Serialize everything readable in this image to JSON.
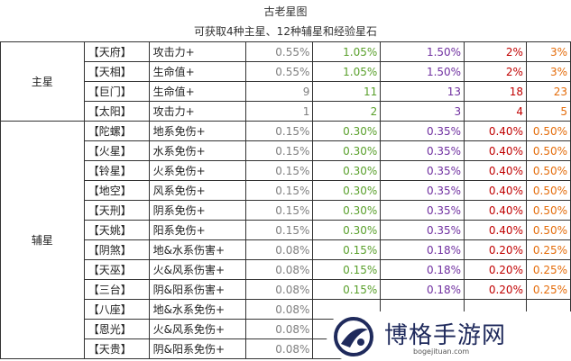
{
  "header": {
    "title": "古老星图",
    "subtitle": "可获取4种主星、12种辅星和经验星石"
  },
  "groups": {
    "main": "主星",
    "aux": "辅星"
  },
  "main_rows": [
    {
      "star": "【天府】",
      "attr": "攻击力+",
      "v": [
        "0.55%",
        "1.05%",
        "1.50%",
        "2%",
        "3%"
      ]
    },
    {
      "star": "【天相】",
      "attr": "生命值+",
      "v": [
        "0.55%",
        "1.05%",
        "1.50%",
        "2%",
        "3%"
      ]
    },
    {
      "star": "【巨门】",
      "attr": "生命值+",
      "v": [
        "9",
        "11",
        "13",
        "18",
        "23"
      ]
    },
    {
      "star": "【太阳】",
      "attr": "攻击力+",
      "v": [
        "1",
        "2",
        "3",
        "4",
        "5"
      ]
    }
  ],
  "aux_rows": [
    {
      "star": "【陀螺】",
      "attr": "地系免伤+",
      "v": [
        "0.15%",
        "0.30%",
        "0.35%",
        "0.40%",
        "0.50%"
      ]
    },
    {
      "star": "【火星】",
      "attr": "水系免伤+",
      "v": [
        "0.15%",
        "0.30%",
        "0.35%",
        "0.40%",
        "0.50%"
      ]
    },
    {
      "star": "【铃星】",
      "attr": "火系免伤+",
      "v": [
        "0.15%",
        "0.30%",
        "0.35%",
        "0.40%",
        "0.50%"
      ]
    },
    {
      "star": "【地空】",
      "attr": "风系免伤+",
      "v": [
        "0.15%",
        "0.30%",
        "0.35%",
        "0.40%",
        "0.50%"
      ]
    },
    {
      "star": "【天刑】",
      "attr": "阴系免伤+",
      "v": [
        "0.15%",
        "0.30%",
        "0.35%",
        "0.40%",
        "0.50%"
      ]
    },
    {
      "star": "【天姚】",
      "attr": "阳系免伤+",
      "v": [
        "0.15%",
        "0.30%",
        "0.35%",
        "0.40%",
        "0.50%"
      ]
    },
    {
      "star": "【阴煞】",
      "attr": "地&水系伤害+",
      "v": [
        "0.08%",
        "0.15%",
        "0.18%",
        "0.20%",
        "0.25%"
      ]
    },
    {
      "star": "【天巫】",
      "attr": "火&风系伤害+",
      "v": [
        "0.08%",
        "0.15%",
        "0.18%",
        "0.20%",
        "0.25%"
      ]
    },
    {
      "star": "【三台】",
      "attr": "阴&阳系伤害+",
      "v": [
        "0.08%",
        "0.15%",
        "0.18%",
        "0.20%",
        "0.25%"
      ]
    },
    {
      "star": "【八座】",
      "attr": "地&水系免伤+",
      "v": [
        "0.08%",
        "",
        "",
        "",
        ""
      ]
    },
    {
      "star": "【恩光】",
      "attr": "火&风系免伤+",
      "v": [
        "0.08%",
        "",
        "",
        "",
        ""
      ]
    },
    {
      "star": "【天贵】",
      "attr": "阴&阳系免伤+",
      "v": [
        "0.08%",
        "",
        "",
        "",
        ""
      ]
    }
  ],
  "watermark": {
    "text": "博格手游网",
    "url": "bogejituan.com"
  }
}
